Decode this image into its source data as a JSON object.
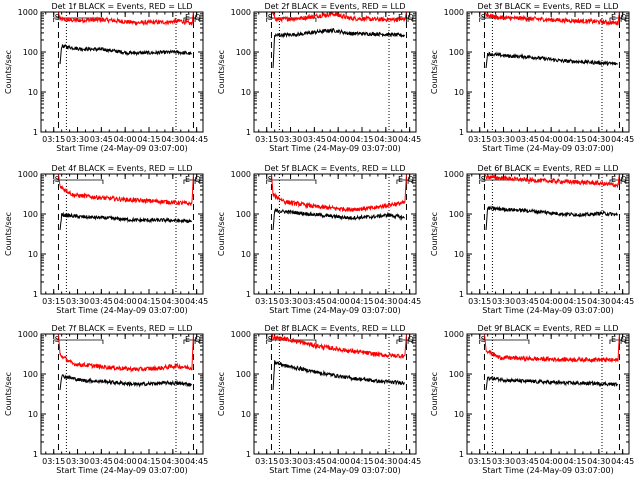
{
  "figure": {
    "ylabel": "Counts/sec",
    "xlabel": "Start Time (24-May-09 03:07:00)",
    "xticks": [
      "03:15",
      "03:30",
      "03:45",
      "04:00",
      "04:15",
      "04:30",
      "04:45"
    ],
    "yticks": [
      "1",
      "10",
      "100",
      "1000"
    ],
    "markers": {
      "s": "S",
      "e": "E",
      "q": "Q"
    },
    "colors": {
      "events": "#000000",
      "lld": "#ff0000",
      "axes": "#000000"
    }
  },
  "chart_data": [
    {
      "type": "line",
      "title": "Det 1f BLACK = Events, RED = LLD",
      "xlabel": "Start Time (24-May-09 03:07:00)",
      "ylabel": "Counts/sec",
      "xlim_min": [
        0,
        102
      ],
      "ylim": [
        1,
        1000
      ],
      "yscale": "log",
      "markers_min": {
        "s": [
          8,
          39
        ],
        "e": [
          90,
          97
        ],
        "q": [
          96,
          100
        ]
      },
      "dashed_lines_min": [
        11,
        96
      ],
      "dotted_lines_min": [
        16,
        85
      ],
      "series": [
        {
          "name": "LLD",
          "color": "#ff0000",
          "start": 11,
          "end": 96,
          "anchors": [
            [
              11,
              1000
            ],
            [
              12,
              650
            ],
            [
              20,
              620
            ],
            [
              40,
              640
            ],
            [
              60,
              540
            ],
            [
              80,
              560
            ],
            [
              88,
              600
            ],
            [
              95,
              500
            ],
            [
              96,
              1000
            ]
          ]
        },
        {
          "name": "Events",
          "color": "#000000",
          "start": 12,
          "end": 95,
          "anchors": [
            [
              12,
              50
            ],
            [
              13,
              140
            ],
            [
              25,
              120
            ],
            [
              40,
              115
            ],
            [
              55,
              95
            ],
            [
              70,
              95
            ],
            [
              85,
              100
            ],
            [
              95,
              90
            ]
          ]
        }
      ]
    },
    {
      "type": "line",
      "title": "Det 2f BLACK = Events, RED = LLD",
      "xlabel": "Start Time (24-May-09 03:07:00)",
      "ylabel": "Counts/sec",
      "xlim_min": [
        0,
        102
      ],
      "ylim": [
        1,
        1000
      ],
      "yscale": "log",
      "markers_min": {
        "s": [
          8,
          39
        ],
        "e": [
          90,
          97
        ],
        "q": [
          96,
          100
        ]
      },
      "dashed_lines_min": [
        11,
        96
      ],
      "dotted_lines_min": [
        16,
        85
      ],
      "series": [
        {
          "name": "LLD",
          "color": "#ff0000",
          "start": 11,
          "end": 96,
          "anchors": [
            [
              11,
              1000
            ],
            [
              12,
              900
            ],
            [
              14,
              650
            ],
            [
              30,
              700
            ],
            [
              40,
              800
            ],
            [
              50,
              900
            ],
            [
              60,
              700
            ],
            [
              80,
              650
            ],
            [
              95,
              650
            ],
            [
              96,
              1000
            ]
          ]
        },
        {
          "name": "Events",
          "color": "#000000",
          "start": 12,
          "end": 95,
          "anchors": [
            [
              12,
              40
            ],
            [
              13,
              260
            ],
            [
              30,
              280
            ],
            [
              40,
              320
            ],
            [
              50,
              350
            ],
            [
              60,
              290
            ],
            [
              80,
              280
            ],
            [
              95,
              260
            ]
          ]
        }
      ]
    },
    {
      "type": "line",
      "title": "Det 3f BLACK = Events, RED = LLD",
      "xlabel": "Start Time (24-May-09 03:07:00)",
      "ylabel": "Counts/sec",
      "xlim_min": [
        0,
        102
      ],
      "ylim": [
        1,
        1000
      ],
      "yscale": "log",
      "markers_min": {
        "s": [
          8,
          39
        ],
        "e": [
          90,
          97
        ],
        "q": [
          96,
          100
        ]
      },
      "dashed_lines_min": [
        11,
        96
      ],
      "dotted_lines_min": [
        16,
        85
      ],
      "series": [
        {
          "name": "LLD",
          "color": "#ff0000",
          "start": 11,
          "end": 96,
          "anchors": [
            [
              11,
              1000
            ],
            [
              12,
              850
            ],
            [
              20,
              720
            ],
            [
              40,
              680
            ],
            [
              60,
              620
            ],
            [
              80,
              580
            ],
            [
              95,
              530
            ],
            [
              96,
              1000
            ]
          ]
        },
        {
          "name": "Events",
          "color": "#000000",
          "start": 12,
          "end": 95,
          "anchors": [
            [
              12,
              40
            ],
            [
              13,
              90
            ],
            [
              25,
              80
            ],
            [
              40,
              75
            ],
            [
              60,
              60
            ],
            [
              80,
              55
            ],
            [
              95,
              50
            ]
          ]
        }
      ]
    },
    {
      "type": "line",
      "title": "Det 4f BLACK = Events, RED = LLD",
      "xlabel": "Start Time (24-May-09 03:07:00)",
      "ylabel": "Counts/sec",
      "xlim_min": [
        0,
        102
      ],
      "ylim": [
        1,
        1000
      ],
      "yscale": "log",
      "markers_min": {
        "s": [
          8,
          39
        ],
        "e": [
          90,
          97
        ],
        "q": [
          96,
          100
        ]
      },
      "dashed_lines_min": [
        11,
        96
      ],
      "dotted_lines_min": [
        16,
        85
      ],
      "series": [
        {
          "name": "LLD",
          "color": "#ff0000",
          "start": 11,
          "end": 96,
          "anchors": [
            [
              11,
              1000
            ],
            [
              12,
              500
            ],
            [
              20,
              300
            ],
            [
              40,
              250
            ],
            [
              60,
              220
            ],
            [
              80,
              200
            ],
            [
              95,
              180
            ],
            [
              96,
              1000
            ]
          ]
        },
        {
          "name": "Events",
          "color": "#000000",
          "start": 12,
          "end": 95,
          "anchors": [
            [
              12,
              40
            ],
            [
              13,
              95
            ],
            [
              25,
              85
            ],
            [
              40,
              80
            ],
            [
              60,
              70
            ],
            [
              80,
              70
            ],
            [
              95,
              65
            ]
          ]
        }
      ]
    },
    {
      "type": "line",
      "title": "Det 5f BLACK = Events, RED = LLD",
      "xlabel": "Start Time (24-May-09 03:07:00)",
      "ylabel": "Counts/sec",
      "xlim_min": [
        0,
        102
      ],
      "ylim": [
        1,
        1000
      ],
      "yscale": "log",
      "markers_min": {
        "s": [
          8,
          39
        ],
        "e": [
          90,
          97
        ],
        "q": [
          96,
          100
        ]
      },
      "dashed_lines_min": [
        11,
        96
      ],
      "dotted_lines_min": [
        16,
        85
      ],
      "series": [
        {
          "name": "LLD",
          "color": "#ff0000",
          "start": 11,
          "end": 96,
          "anchors": [
            [
              11,
              1000
            ],
            [
              12,
              300
            ],
            [
              20,
              200
            ],
            [
              40,
              150
            ],
            [
              60,
              130
            ],
            [
              75,
              140
            ],
            [
              85,
              170
            ],
            [
              95,
              190
            ],
            [
              96,
              1000
            ]
          ]
        },
        {
          "name": "Events",
          "color": "#000000",
          "start": 12,
          "end": 95,
          "anchors": [
            [
              12,
              40
            ],
            [
              13,
              120
            ],
            [
              25,
              110
            ],
            [
              40,
              95
            ],
            [
              60,
              80
            ],
            [
              75,
              85
            ],
            [
              85,
              95
            ],
            [
              95,
              80
            ]
          ]
        }
      ]
    },
    {
      "type": "line",
      "title": "Det 6f BLACK = Events, RED = LLD",
      "xlabel": "Start Time (24-May-09 03:07:00)",
      "ylabel": "Counts/sec",
      "xlim_min": [
        0,
        102
      ],
      "ylim": [
        1,
        1000
      ],
      "yscale": "log",
      "markers_min": {
        "s": [
          8,
          39
        ],
        "e": [
          90,
          97
        ],
        "q": [
          96,
          100
        ]
      },
      "dashed_lines_min": [
        11,
        96
      ],
      "dotted_lines_min": [
        16,
        85
      ],
      "series": [
        {
          "name": "LLD",
          "color": "#ff0000",
          "start": 11,
          "end": 96,
          "anchors": [
            [
              11,
              1000
            ],
            [
              12,
              850
            ],
            [
              20,
              800
            ],
            [
              40,
              700
            ],
            [
              60,
              650
            ],
            [
              80,
              600
            ],
            [
              95,
              520
            ],
            [
              96,
              1000
            ]
          ]
        },
        {
          "name": "Events",
          "color": "#000000",
          "start": 12,
          "end": 95,
          "anchors": [
            [
              12,
              40
            ],
            [
              13,
              140
            ],
            [
              25,
              130
            ],
            [
              40,
              120
            ],
            [
              60,
              100
            ],
            [
              75,
              95
            ],
            [
              85,
              105
            ],
            [
              95,
              95
            ]
          ]
        }
      ]
    },
    {
      "type": "line",
      "title": "Det 7f BLACK = Events, RED = LLD",
      "xlabel": "Start Time (24-May-09 03:07:00)",
      "ylabel": "Counts/sec",
      "xlim_min": [
        0,
        102
      ],
      "ylim": [
        1,
        1000
      ],
      "yscale": "log",
      "markers_min": {
        "s": [
          8,
          39
        ],
        "e": [
          90,
          97
        ],
        "q": [
          96,
          100
        ]
      },
      "dashed_lines_min": [
        11,
        96
      ],
      "dotted_lines_min": [
        16,
        85
      ],
      "series": [
        {
          "name": "LLD",
          "color": "#ff0000",
          "start": 11,
          "end": 96,
          "anchors": [
            [
              11,
              1000
            ],
            [
              12,
              300
            ],
            [
              20,
              180
            ],
            [
              40,
              150
            ],
            [
              60,
              130
            ],
            [
              75,
              140
            ],
            [
              85,
              160
            ],
            [
              95,
              140
            ],
            [
              96,
              1000
            ]
          ]
        },
        {
          "name": "Events",
          "color": "#000000",
          "start": 12,
          "end": 95,
          "anchors": [
            [
              12,
              40
            ],
            [
              13,
              90
            ],
            [
              25,
              70
            ],
            [
              40,
              65
            ],
            [
              60,
              55
            ],
            [
              80,
              60
            ],
            [
              95,
              55
            ]
          ]
        }
      ]
    },
    {
      "type": "line",
      "title": "Det 8f BLACK = Events, RED = LLD",
      "xlabel": "Start Time (24-May-09 03:07:00)",
      "ylabel": "Counts/sec",
      "xlim_min": [
        0,
        102
      ],
      "ylim": [
        1,
        1000
      ],
      "yscale": "log",
      "markers_min": {
        "s": [
          8,
          39
        ],
        "e": [
          90,
          97
        ],
        "q": [
          96,
          100
        ]
      },
      "dashed_lines_min": [
        11,
        96
      ],
      "dotted_lines_min": [
        16,
        85
      ],
      "series": [
        {
          "name": "LLD",
          "color": "#ff0000",
          "start": 11,
          "end": 96,
          "anchors": [
            [
              11,
              1000
            ],
            [
              12,
              800
            ],
            [
              20,
              750
            ],
            [
              40,
              500
            ],
            [
              60,
              380
            ],
            [
              80,
              300
            ],
            [
              95,
              280
            ],
            [
              96,
              1000
            ]
          ]
        },
        {
          "name": "Events",
          "color": "#000000",
          "start": 12,
          "end": 95,
          "anchors": [
            [
              12,
              40
            ],
            [
              13,
              200
            ],
            [
              20,
              160
            ],
            [
              40,
              110
            ],
            [
              60,
              80
            ],
            [
              80,
              65
            ],
            [
              95,
              60
            ]
          ]
        }
      ]
    },
    {
      "type": "line",
      "title": "Det 9f BLACK = Events, RED = LLD",
      "xlabel": "Start Time (24-May-09 03:07:00)",
      "ylabel": "Counts/sec",
      "xlim_min": [
        0,
        102
      ],
      "ylim": [
        1,
        1000
      ],
      "yscale": "log",
      "markers_min": {
        "s": [
          8,
          39
        ],
        "e": [
          90,
          97
        ],
        "q": [
          96,
          100
        ]
      },
      "dashed_lines_min": [
        11,
        96
      ],
      "dotted_lines_min": [
        16,
        85
      ],
      "series": [
        {
          "name": "LLD",
          "color": "#ff0000",
          "start": 11,
          "end": 96,
          "anchors": [
            [
              11,
              1000
            ],
            [
              12,
              400
            ],
            [
              20,
              260
            ],
            [
              40,
              240
            ],
            [
              60,
              230
            ],
            [
              80,
              230
            ],
            [
              95,
              220
            ],
            [
              96,
              1000
            ]
          ]
        },
        {
          "name": "Events",
          "color": "#000000",
          "start": 12,
          "end": 95,
          "anchors": [
            [
              12,
              40
            ],
            [
              13,
              80
            ],
            [
              25,
              70
            ],
            [
              40,
              65
            ],
            [
              60,
              60
            ],
            [
              80,
              58
            ],
            [
              95,
              55
            ]
          ]
        }
      ]
    }
  ]
}
